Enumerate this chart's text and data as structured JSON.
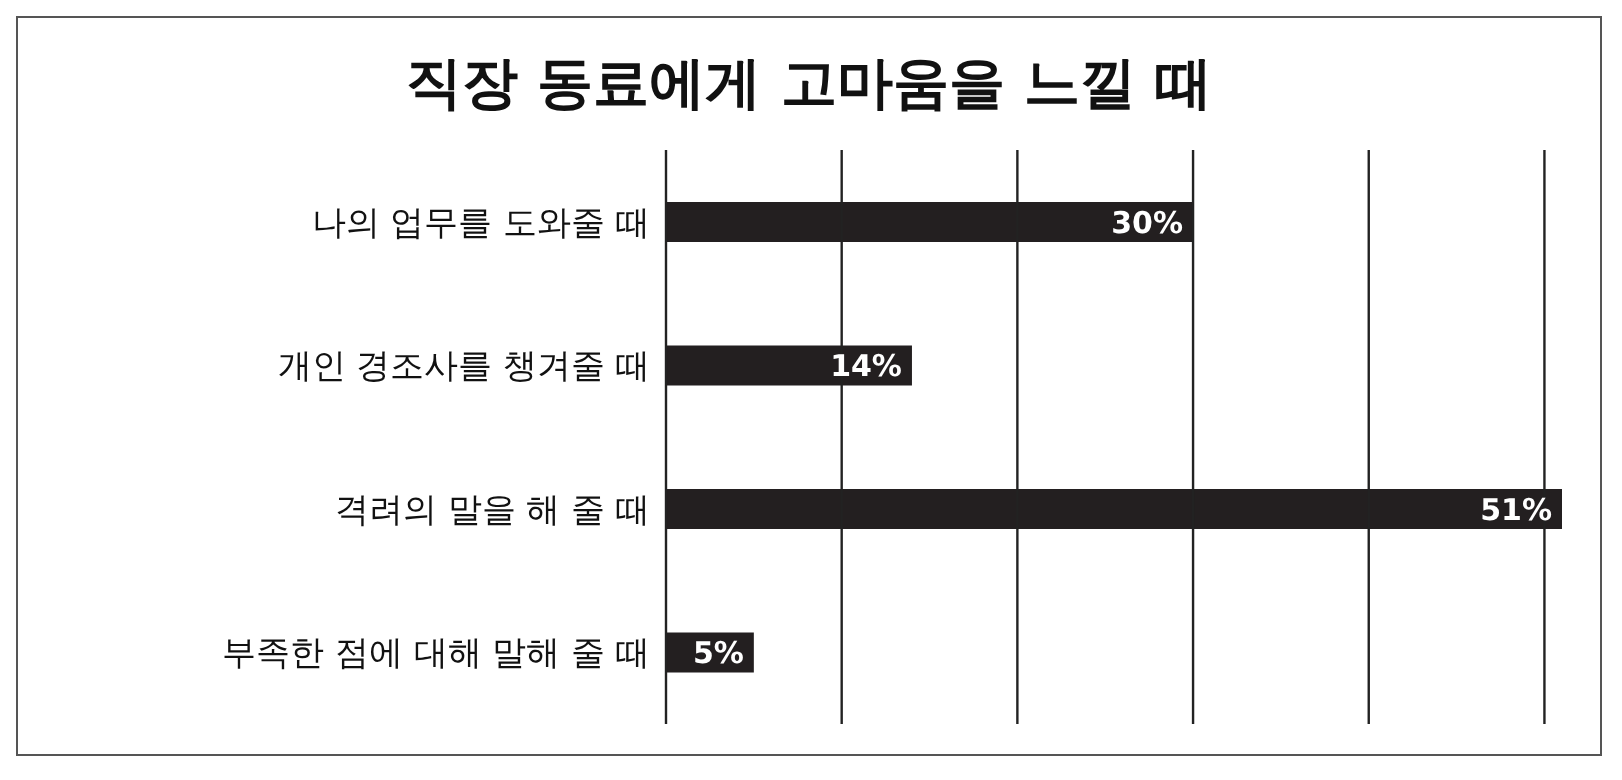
{
  "chart_data": {
    "type": "bar",
    "orientation": "horizontal",
    "title": "직장 동료에게 고마움을 느낄 때",
    "categories": [
      "나의 업무를 도와줄 때",
      "개인 경조사를 챙겨줄 때",
      "격려의 말을 해 줄 때",
      "부족한 점에 대해 말해 줄 때"
    ],
    "values": [
      30,
      14,
      51,
      5
    ],
    "value_labels": [
      "30%",
      "14%",
      "51%",
      "5%"
    ],
    "color": "#231f20",
    "xticks": [
      {
        "value": 0,
        "label": null
      },
      {
        "value": 10,
        "label": null
      },
      {
        "value": 20,
        "label": null
      },
      {
        "value": 30,
        "label": null
      },
      {
        "value": 40,
        "label": null
      },
      {
        "value": 50,
        "label": null
      }
    ],
    "grid": "x",
    "tick_labels": "y"
  }
}
